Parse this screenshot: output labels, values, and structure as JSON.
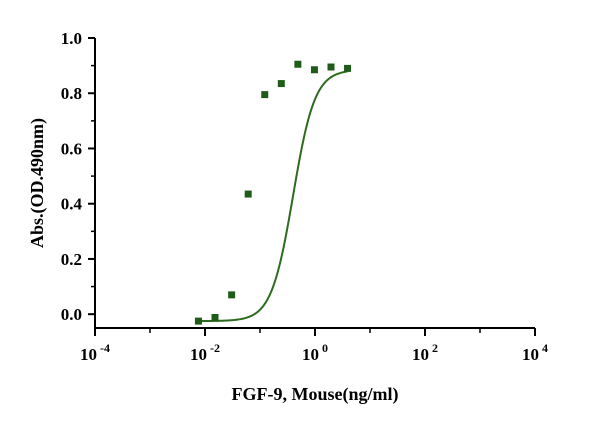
{
  "chart_data": {
    "type": "scatter",
    "xscale": "log",
    "xlabel": "FGF-9, Mouse(ng/ml)",
    "ylabel": "Abs.(OD.490nm)",
    "xlim": [
      0.0001,
      10000
    ],
    "ylim": [
      -0.05,
      1.0
    ],
    "grid": false,
    "x_ticks": [
      {
        "value": 0.0001,
        "base": "10",
        "exp": "-4"
      },
      {
        "value": 0.01,
        "base": "10",
        "exp": "-2"
      },
      {
        "value": 1,
        "base": "10",
        "exp": "0"
      },
      {
        "value": 100,
        "base": "10",
        "exp": "2"
      },
      {
        "value": 10000,
        "base": "10",
        "exp": "4"
      }
    ],
    "y_ticks": [
      {
        "value": 0.0,
        "label": "0.0"
      },
      {
        "value": 0.2,
        "label": "0.2"
      },
      {
        "value": 0.4,
        "label": "0.4"
      },
      {
        "value": 0.6,
        "label": "0.6"
      },
      {
        "value": 0.8,
        "label": "0.8"
      },
      {
        "value": 1.0,
        "label": "1.0"
      }
    ],
    "series": [
      {
        "x": [
          0.0076,
          0.0152,
          0.0305,
          0.061,
          0.122,
          0.244,
          0.488,
          0.977,
          1.953,
          3.906
        ],
        "y": [
          -0.025,
          -0.012,
          0.07,
          0.435,
          0.795,
          0.835,
          0.905,
          0.885,
          0.895,
          0.89
        ],
        "color": "#1f5c1a"
      }
    ],
    "fit": {
      "model": "4PL",
      "bottom": -0.025,
      "top": 0.885,
      "ec50": 0.4,
      "hill": 2.2,
      "color": "#2e6b1e"
    }
  }
}
